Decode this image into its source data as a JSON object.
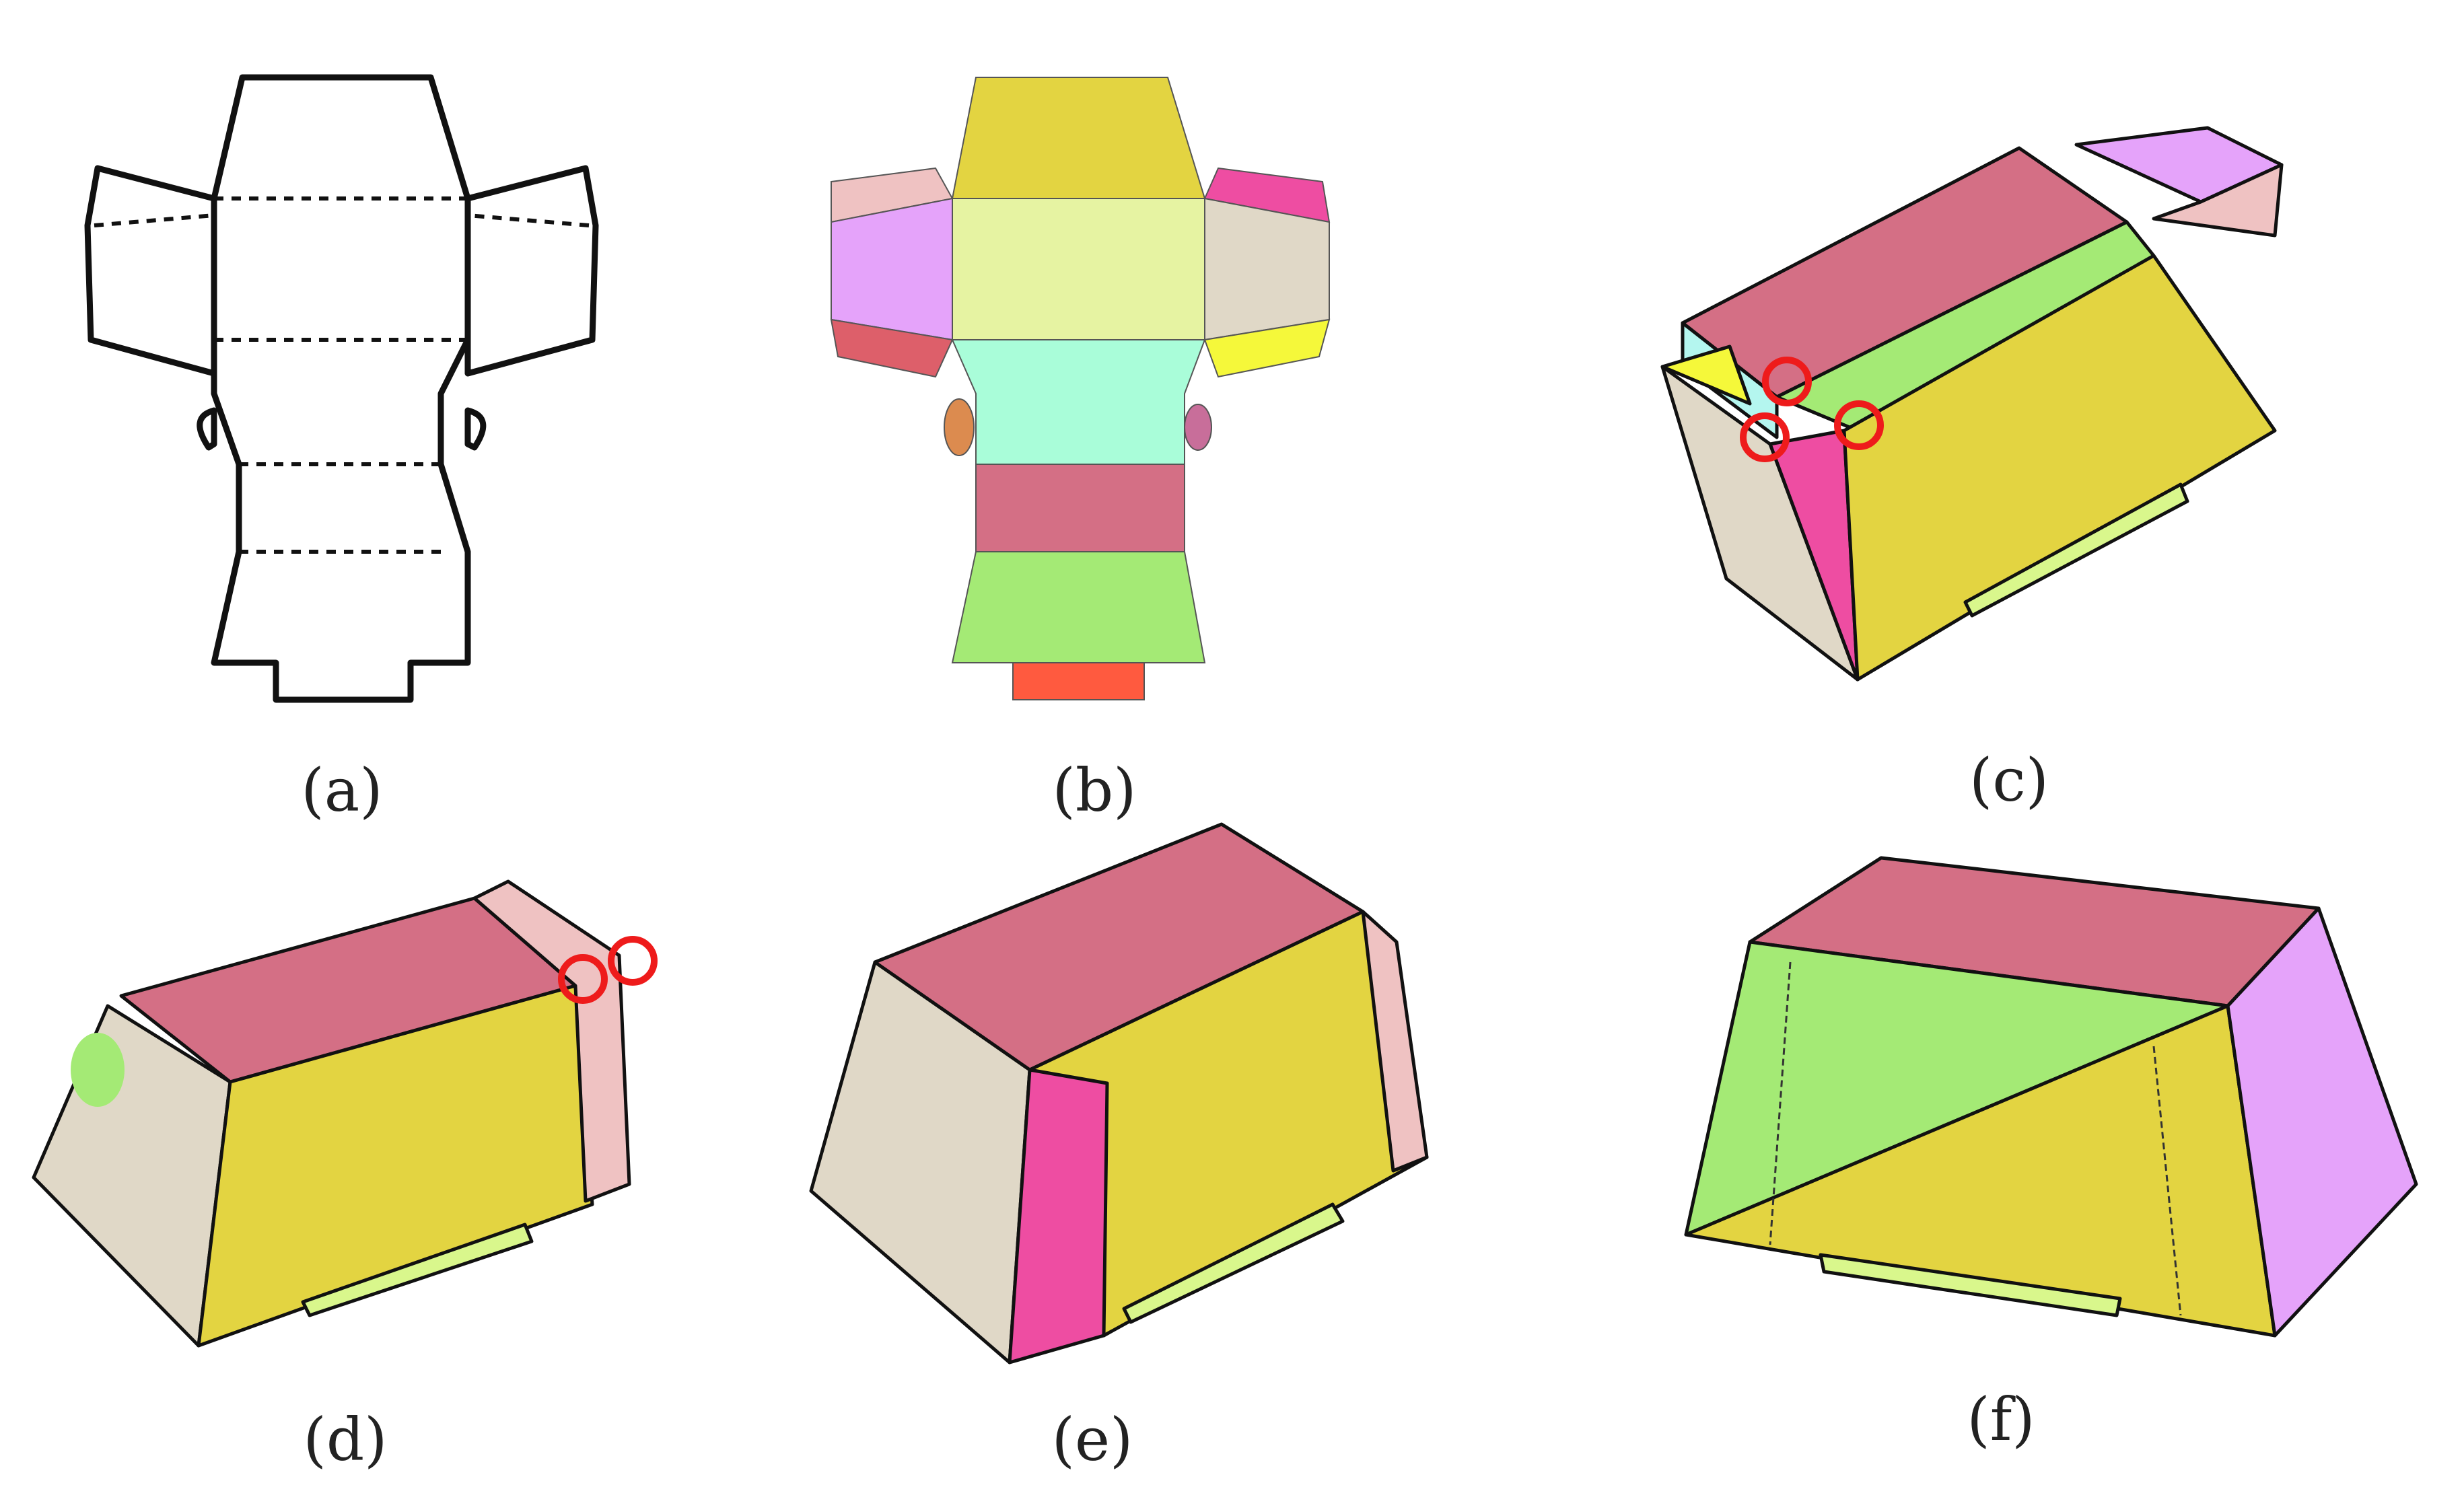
{
  "panels": [
    {
      "id": "a",
      "caption": "(a)"
    },
    {
      "id": "b",
      "caption": "(b)"
    },
    {
      "id": "c",
      "caption": "(c)"
    },
    {
      "id": "d",
      "caption": "(d)"
    },
    {
      "id": "e",
      "caption": "(e)"
    },
    {
      "id": "f",
      "caption": "(f)"
    }
  ],
  "colors": {
    "outline": "#111111",
    "top_flap_yellow": "#e3d441",
    "pale_yellow": "#e6f3a2",
    "mint": "#a9fdd9",
    "rose": "#d46f85",
    "green": "#a4ea75",
    "red_tab": "#ff5a3f",
    "light_pink": "#efc2c2",
    "lavender": "#e5a3fa",
    "crimson": "#dd5f6a",
    "magenta": "#ee4da2",
    "beige": "#e0d8c7",
    "bright_yellow": "#f5f83a",
    "orange_ear": "#dc8b4f",
    "purple_ear": "#c86e9a",
    "highlight_circle": "#ee1b1b",
    "light_green_slot": "#d9f78c",
    "cyan": "#b4f6ef"
  }
}
